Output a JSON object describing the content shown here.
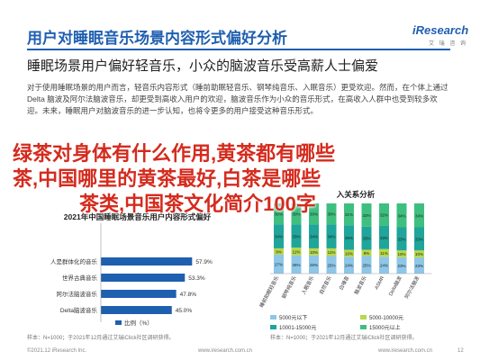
{
  "header": {
    "title": "用户对睡眠音乐场景内容形式偏好分析",
    "brand_main": "iResearch",
    "brand_sub": "艾 瑞 咨 询"
  },
  "subtitle": "睡眠场景用户偏好轻音乐，小众的脑波音乐受高薪人士偏爱",
  "paragraph": "对于使用睡眠场景的用户而言，轻音乐内容形式（睡前助眠轻音乐、钢琴纯音乐、入眠音乐）更受欢迎。然而，在个体上通过Delta 脑波及阿尔法脑波音乐，却更受到高收入用户的欢迎，脑波音乐作为小众的音乐形式，在高收入人群中也受到较多欢迎。未来，睡眠用户对脑波音乐的进一步认知，也将令更多的用户接受这种音乐形式。",
  "overlay": {
    "line1": "绿茶对身体有什么作用,黄茶都有哪些",
    "line2": "茶,中国哪里的黄茶最好,白茶是哪些",
    "line3": "茶类,中国茶文化简介100字"
  },
  "chart_data": [
    {
      "type": "bar",
      "orientation": "horizontal",
      "title": "2021年中国睡眠场景音乐用户内容形式偏好",
      "categories": [
        "",
        "",
        "人是群体化的音乐",
        "世界古典音乐",
        "阿尔法脑波音乐",
        "Delta脑波音乐"
      ],
      "series": [
        {
          "name": "比例（%）",
          "values": [
            null,
            null,
            57.9,
            53.3,
            47.8,
            45.0
          ]
        }
      ],
      "value_labels": [
        "",
        "",
        "57.9%",
        "53.3%",
        "47.8%",
        "45.0%"
      ],
      "colors": {
        "bar": "#1f5fb0"
      },
      "legend": {
        "label": "比例（%）",
        "position": "bottom"
      },
      "note": "样本：N=1000；于2021年12月通过艾瑞iClick社区调研获得。"
    },
    {
      "type": "bar",
      "stacked": true,
      "percent": true,
      "title": "入关系分析",
      "categories": [
        "睡前助眠轻音乐",
        "钢琴纯音乐",
        "入眠音乐",
        "自然音乐",
        "白噪音",
        "脑波音乐",
        "ASMR",
        "Delta脑波",
        "阿尔法脑波"
      ],
      "series": [
        {
          "name": "5000元以下",
          "values": [
            27,
            26,
            26,
            25,
            24,
            25,
            24,
            23,
            23
          ]
        },
        {
          "name": "5000-10000元",
          "values": [
            9,
            11,
            10,
            11,
            10,
            9,
            11,
            10,
            10
          ]
        },
        {
          "name": "10001-15000元",
          "values": [
            34,
            33,
            34,
            34,
            35,
            33,
            33,
            33,
            33
          ]
        },
        {
          "name": "15000元以上",
          "values": [
            30,
            30,
            30,
            30,
            31,
            33,
            32,
            34,
            34
          ]
        }
      ],
      "colors": {
        "5000元以下": "#8ec6e8",
        "5000-10000元": "#b8d84a",
        "10001-15000元": "#1fa59a",
        "15000元以上": "#3fbf7f"
      },
      "legend_position": "bottom",
      "note": "样本：N=1000；于2021年12月通过艾瑞iClick社区调研获得。"
    }
  ],
  "footer": {
    "left": "©2021.12 iResearch Inc.",
    "center": "www.iresearch.com.cn",
    "right_text": "www.iresearch.com.cn",
    "page": "12"
  }
}
